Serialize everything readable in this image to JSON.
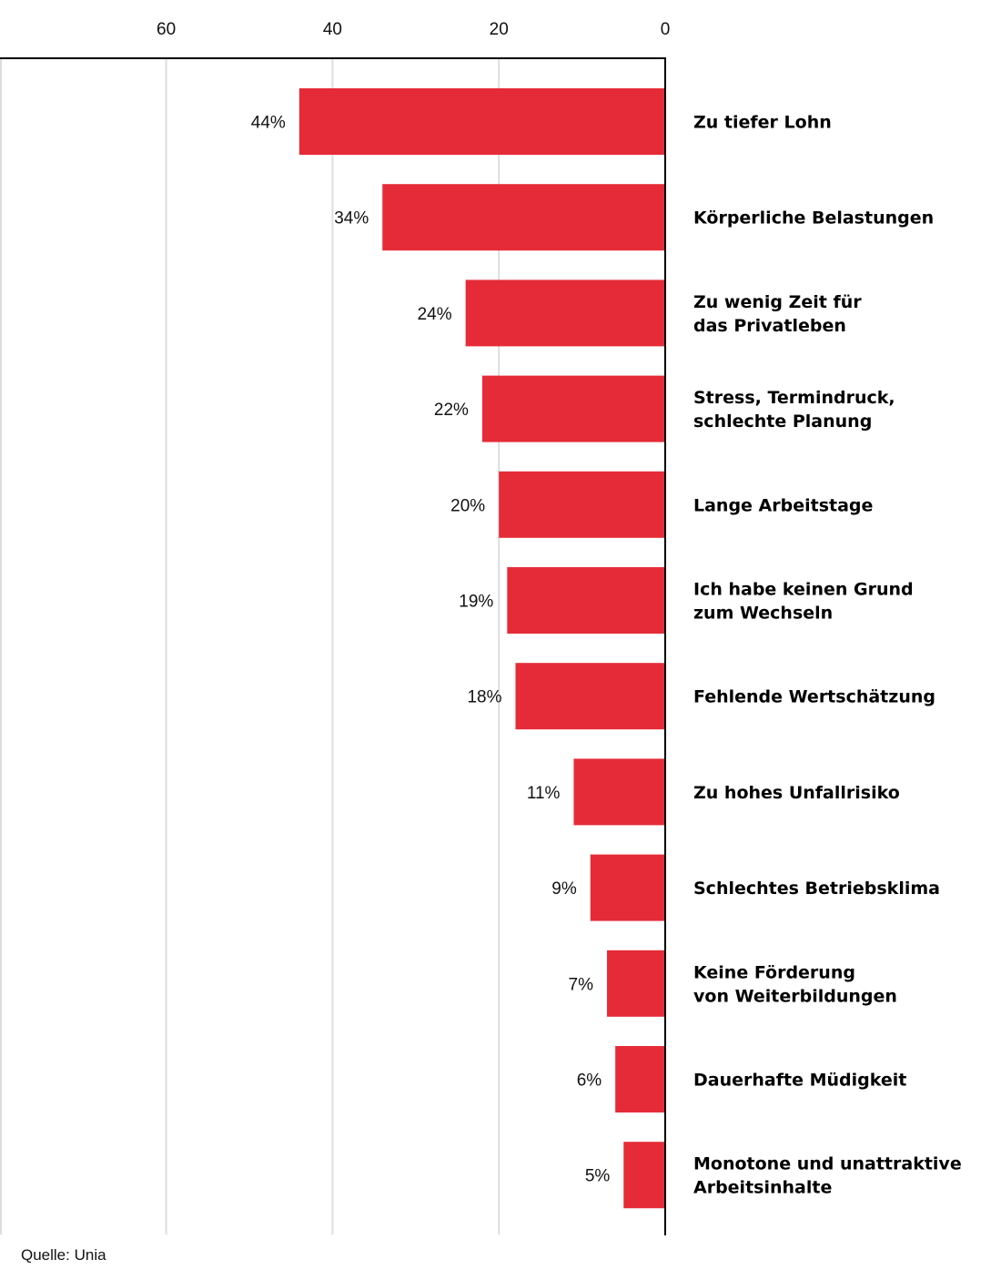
{
  "chart_data": {
    "type": "bar",
    "orientation": "horizontal",
    "direction": "right-to-left",
    "categories": [
      [
        "Zu tiefer Lohn"
      ],
      [
        "Körperliche Belastungen"
      ],
      [
        "Zu wenig Zeit für",
        "das Privatleben"
      ],
      [
        "Stress, Termindruck,",
        "schlechte Planung"
      ],
      [
        "Lange Arbeitstage"
      ],
      [
        "Ich habe keinen Grund",
        "zum Wechseln"
      ],
      [
        "Fehlende Wertschätzung"
      ],
      [
        "Zu hohes Unfallrisiko"
      ],
      [
        "Schlechtes Betriebsklima"
      ],
      [
        "Keine Förderung",
        "von Weiterbildungen"
      ],
      [
        "Dauerhafte Müdigkeit"
      ],
      [
        "Monotone und unattraktive",
        "Arbeitsinhalte"
      ]
    ],
    "values": [
      44,
      34,
      24,
      22,
      20,
      19,
      18,
      11,
      9,
      7,
      6,
      5
    ],
    "data_labels": [
      "44%",
      "34%",
      "24%",
      "22%",
      "20%",
      "19%",
      "18%",
      "11%",
      "9%",
      "7%",
      "6%",
      "5%"
    ],
    "xaxis": {
      "ticks": [
        60,
        40,
        20,
        0
      ],
      "tick_labels": [
        "60",
        "40",
        "20",
        "0"
      ],
      "range": [
        0,
        80
      ],
      "position": "top"
    },
    "grid": true,
    "bar_color": "#e52b38",
    "grid_color": "#dddddd",
    "axis_color": "#000000",
    "source": "Quelle: Unia"
  }
}
